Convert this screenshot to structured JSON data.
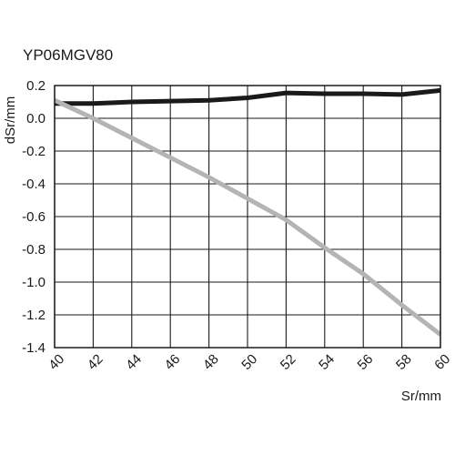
{
  "chart_data": {
    "type": "line",
    "title": "YP06MGV80",
    "xlabel": "Sr/mm",
    "ylabel": "dSr/mm",
    "xlim": [
      40,
      60
    ],
    "ylim": [
      -1.4,
      0.2
    ],
    "x_ticks": [
      40,
      42,
      44,
      46,
      48,
      50,
      52,
      54,
      56,
      58,
      60
    ],
    "x_tick_labels": [
      "40",
      "42",
      "44",
      "46",
      "48",
      "50",
      "52",
      "54",
      "56",
      "58",
      "60"
    ],
    "y_ticks": [
      0.2,
      0.0,
      -0.2,
      -0.4,
      -0.6,
      -0.8,
      -1.0,
      -1.2,
      -1.4
    ],
    "y_tick_labels": [
      "0.2",
      "0.0",
      "-0.2",
      "-0.4",
      "-0.6",
      "-0.8",
      "-1.0",
      "-1.2",
      "-1.4"
    ],
    "grid": true,
    "legend": "none",
    "series": [
      {
        "color": "#1a1a1a",
        "x": [
          40,
          42,
          44,
          46,
          48,
          50,
          52,
          54,
          56,
          58,
          60
        ],
        "y": [
          0.09,
          0.09,
          0.1,
          0.105,
          0.11,
          0.125,
          0.155,
          0.15,
          0.15,
          0.145,
          0.17
        ]
      },
      {
        "color": "#b4b4b4",
        "x": [
          40,
          42,
          44,
          46,
          48,
          50,
          52,
          54,
          56,
          58,
          60
        ],
        "y": [
          0.11,
          0.0,
          -0.12,
          -0.24,
          -0.36,
          -0.49,
          -0.62,
          -0.79,
          -0.95,
          -1.14,
          -1.32
        ]
      }
    ]
  }
}
